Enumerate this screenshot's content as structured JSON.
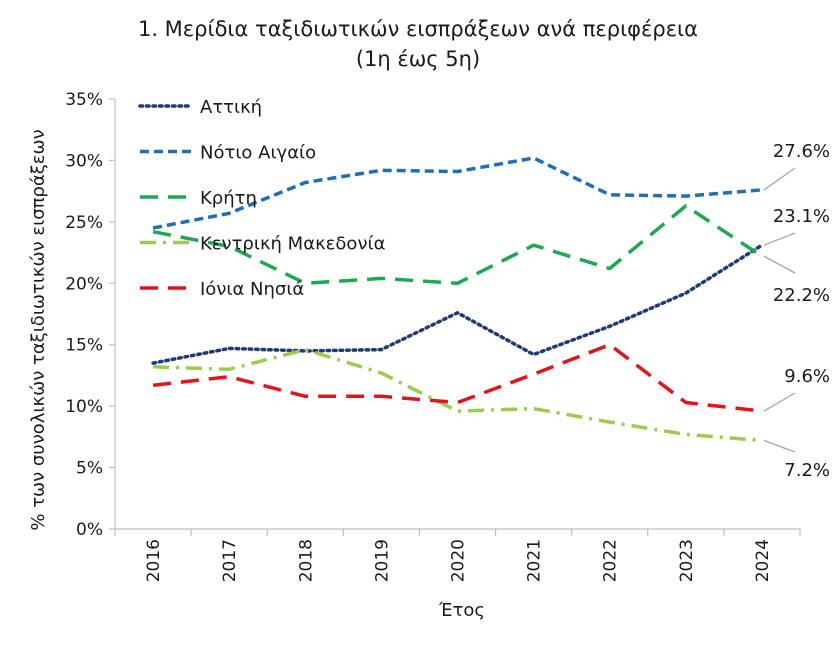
{
  "chart_data": {
    "type": "line",
    "title_line1": "1. Μερίδια ταξιδιωτικών εισπράξεων ανά περιφέρεια",
    "title_line2": "(1η έως 5η)",
    "xlabel": "Έτος",
    "ylabel": "% των συνολικών ταξιδιωτικών εισπράξεων",
    "x": [
      "2016",
      "2017",
      "2018",
      "2019",
      "2020",
      "2021",
      "2022",
      "2023",
      "2024"
    ],
    "y_ticks": [
      "0%",
      "5%",
      "10%",
      "15%",
      "20%",
      "25%",
      "30%",
      "35%"
    ],
    "ylim": [
      0,
      35
    ],
    "grid": false,
    "legend_position": "top-left",
    "series": [
      {
        "name": "Αττική",
        "color": "#1f3b73",
        "style": "dotted",
        "values": [
          13.5,
          14.7,
          14.5,
          14.6,
          17.6,
          14.2,
          16.5,
          19.2,
          23.1
        ]
      },
      {
        "name": "Νότιο Αιγαίο",
        "color": "#1e6fb8",
        "style": "dashed",
        "values": [
          24.5,
          25.7,
          28.2,
          29.2,
          29.1,
          30.2,
          27.2,
          27.1,
          27.6
        ]
      },
      {
        "name": "Κρήτη",
        "color": "#1fa84f",
        "style": "long-dash",
        "values": [
          24.2,
          23.0,
          20.0,
          20.4,
          20.0,
          23.1,
          21.2,
          26.3,
          22.2
        ]
      },
      {
        "name": "Κεντρική Μακεδονία",
        "color": "#9acd4c",
        "style": "dash-dot",
        "values": [
          13.2,
          13.0,
          14.6,
          12.7,
          9.6,
          9.8,
          8.7,
          7.7,
          7.2
        ]
      },
      {
        "name": "Ιόνια Νησιά",
        "color": "#e3141b",
        "style": "long-dash",
        "values": [
          11.7,
          12.4,
          10.8,
          10.8,
          10.3,
          12.6,
          15.0,
          10.3,
          9.6
        ]
      }
    ],
    "end_labels": [
      {
        "series": 1,
        "label": "27.6%"
      },
      {
        "series": 0,
        "label": "23.1%"
      },
      {
        "series": 2,
        "label": "22.2%"
      },
      {
        "series": 4,
        "label": "9.6%"
      },
      {
        "series": 3,
        "label": "7.2%"
      }
    ]
  }
}
